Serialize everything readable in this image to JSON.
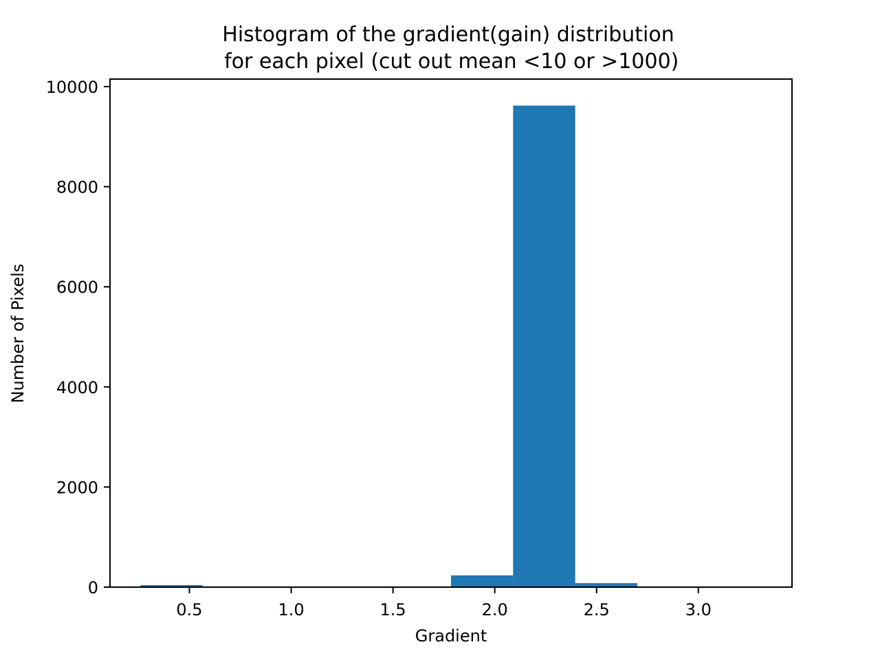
{
  "chart_data": {
    "type": "bar",
    "title_lines": [
      "Histogram of the gradient(gain) distribution",
      " for each pixel (cut out mean <10 or >1000)"
    ],
    "xlabel": "Gradient",
    "ylabel": "Number of Pixels",
    "xlim": [
      0.11,
      3.46
    ],
    "ylim": [
      0,
      10150
    ],
    "x_ticks": [
      0.5,
      1.0,
      1.5,
      2.0,
      2.5,
      3.0
    ],
    "x_tick_labels": [
      "0.5",
      "1.0",
      "1.5",
      "2.0",
      "2.5",
      "3.0"
    ],
    "y_ticks": [
      0,
      2000,
      4000,
      6000,
      8000,
      10000
    ],
    "y_tick_labels": [
      "0",
      "2000",
      "4000",
      "6000",
      "8000",
      "10000"
    ],
    "bins": [
      {
        "x0": 0.26,
        "x1": 0.565,
        "count": 40
      },
      {
        "x0": 0.565,
        "x1": 0.87,
        "count": 0
      },
      {
        "x0": 0.87,
        "x1": 1.175,
        "count": 0
      },
      {
        "x0": 1.175,
        "x1": 1.48,
        "count": 0
      },
      {
        "x0": 1.48,
        "x1": 1.785,
        "count": 0
      },
      {
        "x0": 1.785,
        "x1": 2.09,
        "count": 235
      },
      {
        "x0": 2.09,
        "x1": 2.395,
        "count": 9620
      },
      {
        "x0": 2.395,
        "x1": 2.7,
        "count": 80
      },
      {
        "x0": 2.7,
        "x1": 3.005,
        "count": 0
      },
      {
        "x0": 3.005,
        "x1": 3.31,
        "count": 0
      }
    ],
    "grid": false,
    "legend": "none",
    "colors": {
      "bar": "#1f77b4",
      "axes": "#000000",
      "background": "#ffffff"
    }
  }
}
